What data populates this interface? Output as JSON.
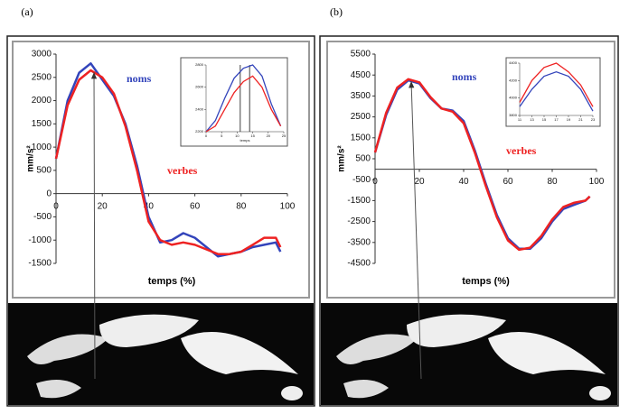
{
  "chart_data": [
    {
      "type": "line",
      "panel": "(a)",
      "x_label": "temps (%)",
      "y_label": "mm/s²",
      "x": [
        0,
        5,
        10,
        15,
        20,
        25,
        30,
        35,
        40,
        45,
        50,
        55,
        60,
        65,
        70,
        75,
        80,
        85,
        90,
        95,
        97
      ],
      "series": [
        {
          "name": "noms",
          "color": "#3344bb",
          "values": [
            750,
            2000,
            2600,
            2800,
            2450,
            2100,
            1500,
            600,
            -500,
            -1050,
            -1000,
            -850,
            -950,
            -1150,
            -1350,
            -1300,
            -1250,
            -1150,
            -1100,
            -1050,
            -1250
          ]
        },
        {
          "name": "verbes",
          "color": "#ee2222",
          "values": [
            750,
            1900,
            2450,
            2650,
            2500,
            2150,
            1450,
            500,
            -600,
            -1000,
            -1100,
            -1050,
            -1100,
            -1200,
            -1300,
            -1300,
            -1250,
            -1100,
            -950,
            -950,
            -1150
          ]
        }
      ],
      "xlim": [
        0,
        100
      ],
      "xticks": [
        0,
        20,
        40,
        60,
        80,
        100
      ],
      "ylim": [
        -1500,
        3000
      ],
      "yticks": [
        -1500,
        -1000,
        -500,
        0,
        500,
        1000,
        1500,
        2000,
        2500,
        3000
      ],
      "inset": {
        "x_label": "temps",
        "x": [
          0,
          3,
          6,
          9,
          12,
          15,
          18,
          21,
          24
        ],
        "series": [
          {
            "name": "noms",
            "color": "#3344bb",
            "values": [
              2200,
              2300,
              2500,
              2680,
              2770,
              2800,
              2700,
              2450,
              2250
            ]
          },
          {
            "name": "verbes",
            "color": "#ee2222",
            "values": [
              2200,
              2250,
              2400,
              2550,
              2650,
              2700,
              2600,
              2400,
              2250
            ]
          }
        ],
        "xlim": [
          0,
          25
        ],
        "xticks": [
          0,
          5,
          10,
          15,
          20,
          25
        ],
        "ylim": [
          2200,
          2800
        ],
        "yticks": [
          2200,
          2400,
          2600,
          2800
        ],
        "vlines": [
          11,
          14
        ]
      }
    },
    {
      "type": "line",
      "panel": "(b)",
      "x_label": "temps (%)",
      "y_label": "mm/s²",
      "x": [
        0,
        5,
        10,
        15,
        20,
        25,
        30,
        35,
        40,
        45,
        50,
        55,
        60,
        65,
        70,
        75,
        80,
        85,
        90,
        95,
        97
      ],
      "series": [
        {
          "name": "noms",
          "color": "#3344bb",
          "values": [
            800,
            2600,
            3800,
            4250,
            4100,
            3400,
            2900,
            2800,
            2300,
            900,
            -700,
            -2200,
            -3300,
            -3800,
            -3800,
            -3300,
            -2500,
            -1900,
            -1700,
            -1500,
            -1300
          ]
        },
        {
          "name": "verbes",
          "color": "#ee2222",
          "values": [
            800,
            2700,
            3900,
            4300,
            4150,
            3450,
            2900,
            2750,
            2200,
            800,
            -800,
            -2300,
            -3400,
            -3850,
            -3750,
            -3200,
            -2400,
            -1800,
            -1600,
            -1500,
            -1300
          ]
        }
      ],
      "xlim": [
        0,
        100
      ],
      "xticks": [
        0,
        20,
        40,
        60,
        80,
        100
      ],
      "ylim": [
        -4500,
        5500
      ],
      "yticks": [
        -4500,
        -3500,
        -2500,
        -1500,
        -500,
        500,
        1500,
        2500,
        3500,
        4500,
        5500
      ],
      "inset": {
        "x": [
          11,
          13,
          15,
          17,
          19,
          21,
          23
        ],
        "series": [
          {
            "name": "noms",
            "color": "#3344bb",
            "values": [
              3900,
              4100,
              4250,
              4300,
              4250,
              4100,
              3850
            ]
          },
          {
            "name": "verbes",
            "color": "#ee2222",
            "values": [
              3950,
              4200,
              4350,
              4400,
              4300,
              4150,
              3900
            ]
          }
        ],
        "xlim": [
          11,
          23
        ],
        "xticks": [
          11,
          13,
          15,
          17,
          19,
          21,
          23
        ],
        "ylim": [
          3800,
          4400
        ],
        "yticks": [
          3800,
          4000,
          4200,
          4400
        ]
      }
    }
  ]
}
